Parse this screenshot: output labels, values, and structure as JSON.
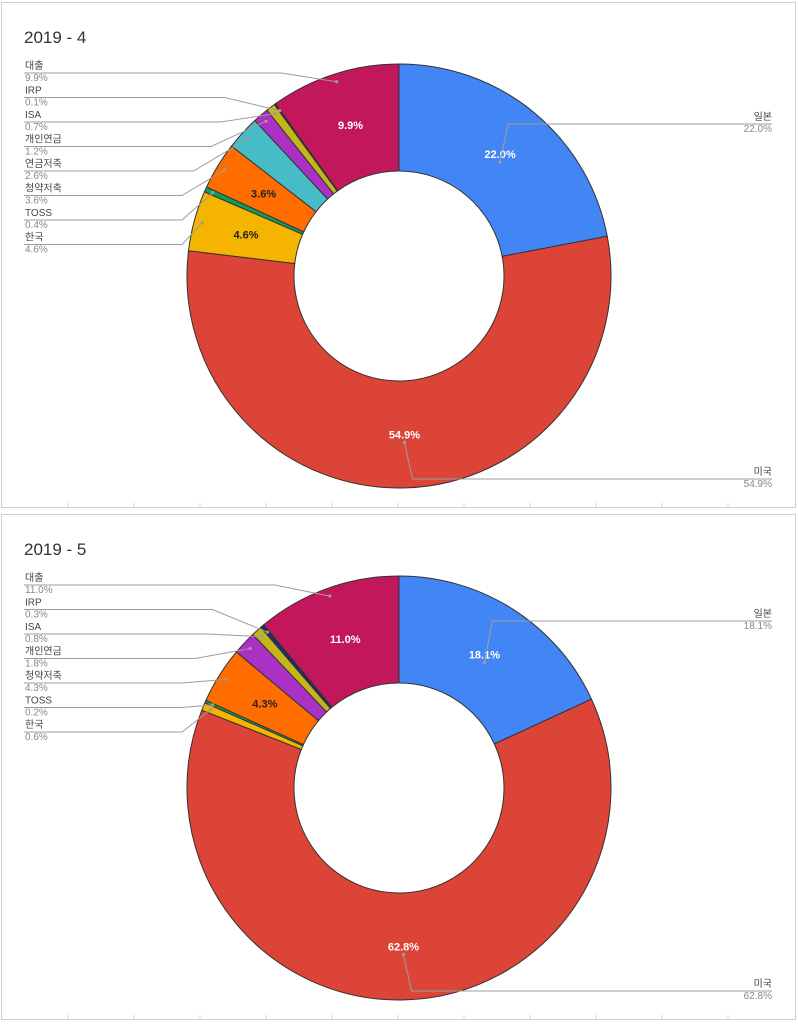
{
  "colors": {
    "일본": "#4285f4",
    "미국": "#db4437",
    "한국": "#f4b400",
    "TOSS": "#0f9d58",
    "청약저축": "#ff6d00",
    "연금저축": "#46bdc6",
    "개인연금": "#ab30c4",
    "ISA": "#c5b51a",
    "IRP": "#1a2e6e",
    "대출": "#c2185b"
  },
  "chart_data": [
    {
      "type": "pie",
      "title": "2019 - 4",
      "slices": [
        {
          "label": "일본",
          "value": 22.0,
          "pct": "22.0%",
          "side": "right"
        },
        {
          "label": "미국",
          "value": 54.9,
          "pct": "54.9%",
          "side": "right"
        },
        {
          "label": "한국",
          "value": 4.6,
          "pct": "4.6%",
          "side": "left"
        },
        {
          "label": "TOSS",
          "value": 0.4,
          "pct": "0.4%",
          "side": "left"
        },
        {
          "label": "청약저축",
          "value": 3.6,
          "pct": "3.6%",
          "side": "left"
        },
        {
          "label": "연금저축",
          "value": 2.6,
          "pct": "2.6%",
          "side": "left"
        },
        {
          "label": "개인연금",
          "value": 1.2,
          "pct": "1.2%",
          "side": "left"
        },
        {
          "label": "ISA",
          "value": 0.7,
          "pct": "0.7%",
          "side": "left"
        },
        {
          "label": "IRP",
          "value": 0.1,
          "pct": "0.1%",
          "side": "left"
        },
        {
          "label": "대출",
          "value": 9.9,
          "pct": "9.9%",
          "side": "left"
        }
      ],
      "inner_labels": [
        "22.0%",
        "54.9%",
        "4.6%",
        "3.6%",
        "9.9%"
      ]
    },
    {
      "type": "pie",
      "title": "2019 - 5",
      "slices": [
        {
          "label": "일본",
          "value": 18.1,
          "pct": "18.1%",
          "side": "right"
        },
        {
          "label": "미국",
          "value": 62.8,
          "pct": "62.8%",
          "side": "right"
        },
        {
          "label": "한국",
          "value": 0.6,
          "pct": "0.6%",
          "side": "left"
        },
        {
          "label": "TOSS",
          "value": 0.2,
          "pct": "0.2%",
          "side": "left"
        },
        {
          "label": "청약저축",
          "value": 4.3,
          "pct": "4.3%",
          "side": "left"
        },
        {
          "label": "개인연금",
          "value": 1.8,
          "pct": "1.8%",
          "side": "left"
        },
        {
          "label": "ISA",
          "value": 0.8,
          "pct": "0.8%",
          "side": "left"
        },
        {
          "label": "IRP",
          "value": 0.3,
          "pct": "0.3%",
          "side": "left"
        },
        {
          "label": "대출",
          "value": 11.0,
          "pct": "11.0%",
          "side": "left"
        }
      ],
      "inner_labels": [
        "18.1%",
        "62.8%",
        "4.3%",
        "11.0%"
      ]
    }
  ]
}
